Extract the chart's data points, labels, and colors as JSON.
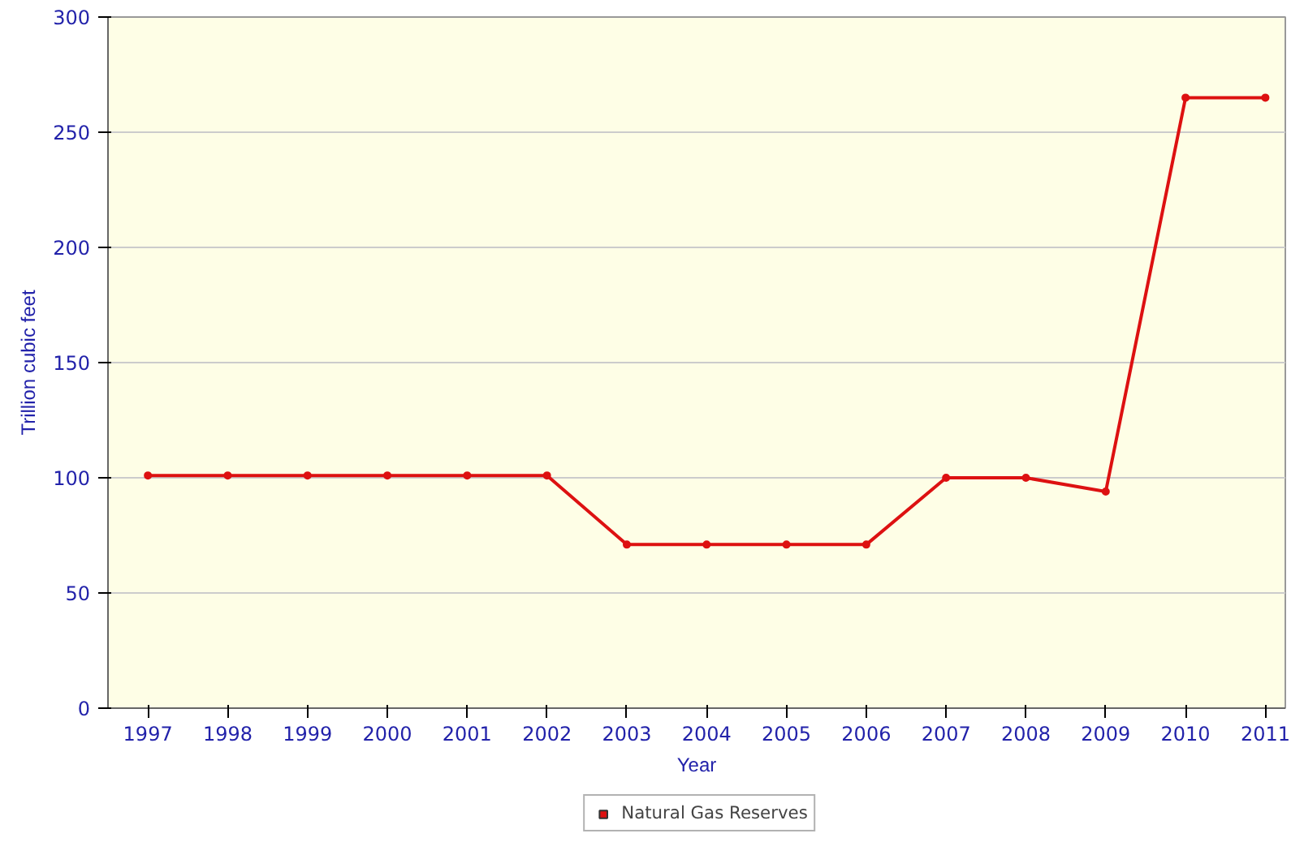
{
  "chart_data": {
    "type": "line",
    "xlabel": "Year",
    "ylabel": "Trillion cubic feet",
    "categories": [
      "1997",
      "1998",
      "1999",
      "2000",
      "2001",
      "2002",
      "2003",
      "2004",
      "2005",
      "2006",
      "2007",
      "2008",
      "2009",
      "2010",
      "2011"
    ],
    "series": [
      {
        "name": "Natural Gas Reserves",
        "color": "#dd1111",
        "values": [
          101,
          101,
          101,
          101,
          101,
          101,
          71,
          71,
          71,
          71,
          100,
          100,
          94,
          265,
          265
        ]
      }
    ],
    "ylim": [
      0,
      300
    ],
    "yticks": [
      0,
      50,
      100,
      150,
      200,
      250,
      300
    ],
    "grid": "y",
    "legend": "bottom",
    "marker": "circle",
    "line_style": "solid"
  }
}
